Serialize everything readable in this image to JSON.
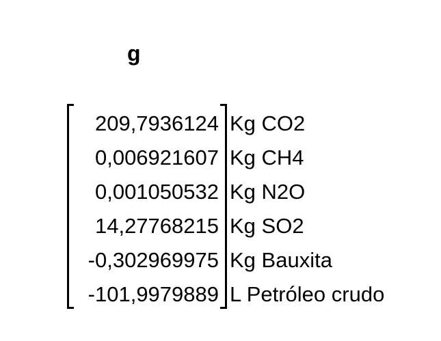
{
  "title": "g",
  "rows": [
    {
      "value": "209,7936124",
      "unit": "Kg CO2"
    },
    {
      "value": "0,006921607",
      "unit": "Kg CH4"
    },
    {
      "value": "0,001050532",
      "unit": "Kg N2O"
    },
    {
      "value": "14,27768215",
      "unit": "Kg SO2"
    },
    {
      "value": "-0,302969975",
      "unit": "Kg Bauxita"
    },
    {
      "value": "-101,9979889",
      "unit": "L Petróleo crudo"
    }
  ]
}
